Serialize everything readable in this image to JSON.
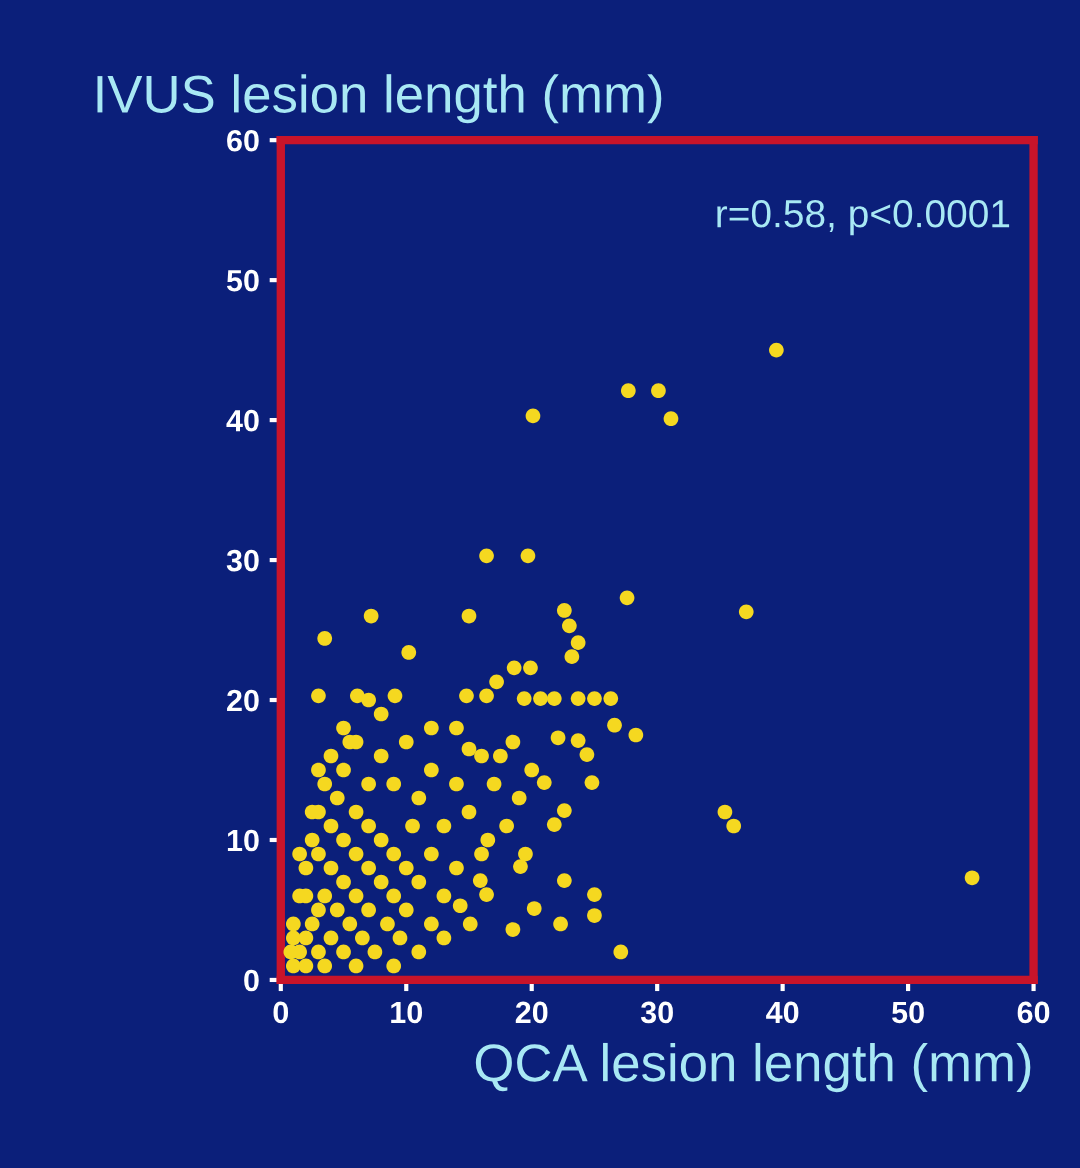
{
  "chart_data": {
    "type": "scatter",
    "xlabel": "QCA lesion length (mm)",
    "ylabel": "IVUS lesion length (mm)",
    "annotations": [
      "r=0.58, p<0.0001"
    ],
    "x": [
      39.5,
      27.7,
      30.1,
      31.1,
      20.1,
      16.4,
      19.7,
      27.6,
      37.1,
      7.2,
      15,
      22.6,
      3.5,
      23,
      23.7,
      23.2,
      10.2,
      3,
      6.1,
      9.1,
      14.8,
      16.4,
      18.6,
      19.9,
      17.2,
      19.4,
      20.7,
      21.8,
      23.7,
      25,
      26.3,
      26.6,
      28.3,
      22.1,
      23.7,
      24.4,
      24.8,
      21,
      35.4,
      36.1,
      55.1,
      22.6,
      25,
      25,
      20.2,
      22.3,
      18.5,
      27.1,
      19.1,
      21.8,
      22.6,
      15.9,
      16.4,
      14.3,
      15.1,
      1,
      1.5,
      2,
      2,
      2.5,
      3,
      3,
      3.5,
      3.5,
      4,
      4,
      4.5,
      5,
      5,
      5,
      5.5,
      6,
      6,
      6,
      6.5,
      7,
      7,
      7,
      7.5,
      8,
      8,
      8.5,
      9,
      9,
      9.5,
      10,
      10,
      1,
      1.5,
      2,
      2.5,
      3,
      3.5,
      4,
      4.5,
      5,
      5.5,
      4,
      3,
      2,
      1.5,
      1,
      0.8,
      10.5,
      11,
      11,
      12,
      12,
      13,
      13,
      14,
      14,
      12,
      9,
      8,
      7,
      6,
      15,
      16,
      17,
      18,
      16,
      19,
      11,
      9,
      6,
      13,
      15,
      17.5,
      20,
      18.5,
      14,
      12,
      10,
      8,
      7,
      5,
      3,
      2.5,
      16.5,
      19.5
    ],
    "values": [
      45,
      42.1,
      42.1,
      40.1,
      40.3,
      30.3,
      30.3,
      27.3,
      26.3,
      26,
      26,
      26.4,
      24.4,
      25.3,
      24.1,
      23.1,
      23.4,
      20.3,
      20.3,
      20.3,
      20.3,
      20.3,
      22.3,
      22.3,
      21.3,
      20.1,
      20.1,
      20.1,
      20.1,
      20.1,
      20.1,
      18.2,
      17.5,
      17.3,
      17.1,
      16.1,
      14.1,
      14.1,
      12,
      11,
      7.3,
      7.1,
      6.1,
      4.6,
      5.1,
      4,
      3.6,
      2,
      8.1,
      11.1,
      12.1,
      7.1,
      6.1,
      5.3,
      4,
      1,
      2,
      1,
      3,
      4,
      2,
      5,
      1,
      6,
      3,
      8,
      5,
      2,
      7,
      10,
      4,
      6,
      9,
      12,
      3,
      5,
      8,
      11,
      2,
      7,
      10,
      4,
      6,
      9,
      3,
      5,
      8,
      4,
      6,
      8,
      10,
      12,
      14,
      16,
      13,
      15,
      17,
      11,
      9,
      6,
      9,
      3,
      2,
      11,
      13,
      7,
      9,
      4,
      11,
      6,
      8,
      14,
      15,
      14,
      16,
      14,
      17,
      12,
      9,
      14,
      11,
      16,
      13,
      2,
      1,
      1,
      3,
      16.5,
      16,
      15,
      17,
      18,
      18,
      17,
      19,
      20,
      18,
      15,
      12,
      10,
      9
    ],
    "color": "#f5d820",
    "marker": "circle",
    "xlim": [
      0,
      60
    ],
    "ylim": [
      0,
      60
    ],
    "xticks": [
      0,
      10,
      20,
      30,
      40,
      50,
      60
    ],
    "yticks": [
      0,
      10,
      20,
      30,
      40,
      50,
      60
    ]
  }
}
